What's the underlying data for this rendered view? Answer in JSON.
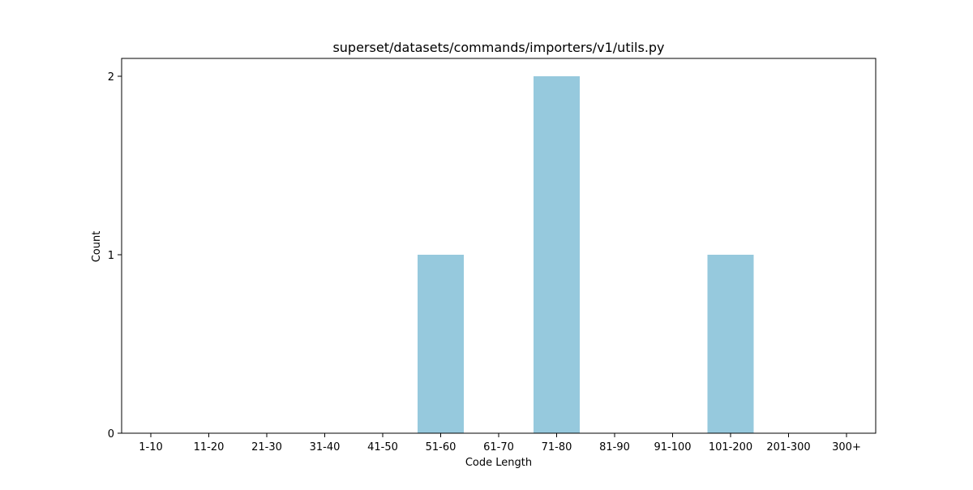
{
  "chart_data": {
    "type": "bar",
    "title": "superset/datasets/commands/importers/v1/utils.py",
    "xlabel": "Code Length",
    "ylabel": "Count",
    "categories": [
      "1-10",
      "11-20",
      "21-30",
      "31-40",
      "41-50",
      "51-60",
      "61-70",
      "71-80",
      "81-90",
      "91-100",
      "101-200",
      "201-300",
      "300+"
    ],
    "values": [
      0,
      0,
      0,
      0,
      0,
      1,
      0,
      2,
      0,
      0,
      1,
      0,
      0
    ],
    "yticks": [
      "0",
      "1",
      "2"
    ],
    "ylim": [
      0,
      2.1
    ],
    "grid": false,
    "bar_color": "#96c9dd"
  }
}
